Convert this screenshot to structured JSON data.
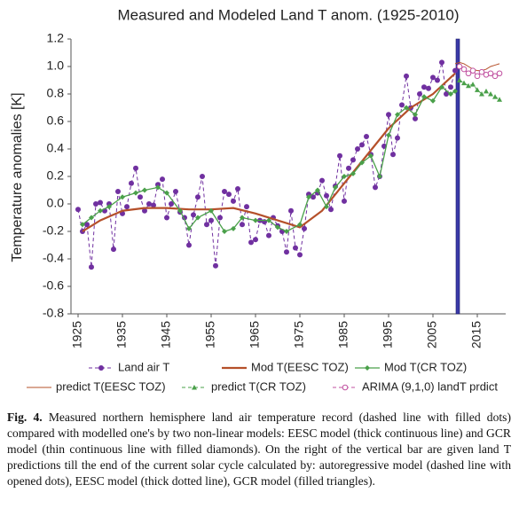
{
  "chart_data": {
    "type": "line",
    "title": "Measured and Modeled Land T anom. (1925-2010)",
    "ylabel": "Temperature anomalies [K]",
    "xlim": [
      1923.4,
      2021.4
    ],
    "xticks": [
      1925,
      1935,
      1945,
      1955,
      1965,
      1975,
      1985,
      1995,
      2005,
      2015
    ],
    "ylim": [
      -0.8,
      1.2
    ],
    "yticks": [
      -0.8,
      -0.6,
      -0.4,
      -0.2,
      {
        "value": 0,
        "label": "0.0"
      },
      0.2,
      0.4,
      0.6,
      0.8,
      {
        "value": 1,
        "label": "1.0"
      },
      1.2
    ],
    "grid": false,
    "divider_x": 2010.6,
    "divider_color": "#3a3aa8",
    "series": [
      {
        "name": "Land air T",
        "color": "#7030a0",
        "dash": true,
        "width": 1,
        "marker": "dot",
        "x": [
          1925,
          1926,
          1927,
          1928,
          1929,
          1930,
          1931,
          1932,
          1933,
          1934,
          1935,
          1936,
          1937,
          1938,
          1939,
          1940,
          1941,
          1942,
          1943,
          1944,
          1945,
          1946,
          1947,
          1948,
          1949,
          1950,
          1951,
          1952,
          1953,
          1954,
          1955,
          1956,
          1957,
          1958,
          1959,
          1960,
          1961,
          1962,
          1963,
          1964,
          1965,
          1966,
          1967,
          1968,
          1969,
          1970,
          1971,
          1972,
          1973,
          1974,
          1975,
          1976,
          1977,
          1978,
          1979,
          1980,
          1981,
          1982,
          1983,
          1984,
          1985,
          1986,
          1987,
          1988,
          1989,
          1990,
          1991,
          1992,
          1993,
          1994,
          1995,
          1996,
          1997,
          1998,
          1999,
          2000,
          2001,
          2002,
          2003,
          2004,
          2005,
          2006,
          2007,
          2008,
          2009,
          2010
        ],
        "values": [
          -0.04,
          -0.2,
          -0.15,
          -0.46,
          0.0,
          0.01,
          -0.05,
          0.0,
          -0.33,
          0.09,
          -0.07,
          -0.02,
          0.15,
          0.26,
          0.05,
          -0.05,
          0.0,
          -0.01,
          0.14,
          0.18,
          -0.1,
          0.0,
          0.09,
          -0.06,
          -0.1,
          -0.3,
          -0.08,
          0.05,
          0.2,
          -0.15,
          -0.12,
          -0.45,
          -0.1,
          0.09,
          0.07,
          0.02,
          0.11,
          -0.15,
          -0.02,
          -0.28,
          -0.26,
          -0.12,
          -0.13,
          -0.23,
          -0.1,
          -0.16,
          -0.2,
          -0.35,
          -0.05,
          -0.32,
          -0.37,
          -0.18,
          0.07,
          0.05,
          0.08,
          0.17,
          0.06,
          -0.04,
          0.13,
          0.35,
          0.02,
          0.26,
          0.32,
          0.4,
          0.43,
          0.49,
          0.36,
          0.12,
          0.2,
          0.42,
          0.65,
          0.36,
          0.48,
          0.72,
          0.93,
          0.7,
          0.62,
          0.8,
          0.85,
          0.84,
          0.92,
          0.9,
          1.03,
          0.8,
          0.85,
          0.97
        ]
      },
      {
        "name": "Mod T(EESC TOZ)",
        "color": "#b5502a",
        "dash": false,
        "width": 2.2,
        "marker": "none",
        "x": [
          1926,
          1930,
          1935,
          1940,
          1945,
          1950,
          1955,
          1960,
          1965,
          1970,
          1975,
          1980,
          1985,
          1990,
          1995,
          2000,
          2005,
          2010
        ],
        "values": [
          -0.2,
          -0.12,
          -0.05,
          -0.03,
          -0.03,
          -0.04,
          -0.04,
          -0.03,
          -0.07,
          -0.12,
          -0.17,
          -0.05,
          0.15,
          0.35,
          0.55,
          0.7,
          0.8,
          0.95
        ]
      },
      {
        "name": "Mod T(CR TOZ)",
        "color": "#4aa04a",
        "dash": false,
        "width": 1.3,
        "marker": "diamond",
        "x": [
          1926,
          1928,
          1930,
          1932,
          1935,
          1938,
          1940,
          1943,
          1945,
          1948,
          1950,
          1952,
          1955,
          1958,
          1960,
          1962,
          1965,
          1968,
          1970,
          1972,
          1975,
          1977,
          1979,
          1981,
          1983,
          1985,
          1987,
          1989,
          1991,
          1993,
          1995,
          1997,
          1999,
          2001,
          2003,
          2005,
          2007,
          2009,
          2010
        ],
        "values": [
          -0.15,
          -0.1,
          -0.05,
          -0.02,
          0.05,
          0.08,
          0.1,
          0.12,
          0.08,
          -0.05,
          -0.18,
          -0.1,
          -0.05,
          -0.2,
          -0.18,
          -0.1,
          -0.12,
          -0.12,
          -0.17,
          -0.2,
          -0.15,
          0.05,
          0.1,
          -0.02,
          0.12,
          0.2,
          0.22,
          0.3,
          0.35,
          0.2,
          0.5,
          0.65,
          0.7,
          0.65,
          0.78,
          0.75,
          0.85,
          0.8,
          0.82
        ]
      },
      {
        "name": "predict T(EESC TOZ)",
        "color": "#b5502a",
        "dash": false,
        "width": 1,
        "marker": "none",
        "x": [
          2010,
          2011,
          2012,
          2013,
          2014,
          2015,
          2016,
          2017,
          2018,
          2019,
          2020
        ],
        "values": [
          1.02,
          1.03,
          1.02,
          1.0,
          0.98,
          0.97,
          0.97,
          0.98,
          1.0,
          1.01,
          1.02
        ]
      },
      {
        "name": "predict T(CR TOZ)",
        "color": "#4aa04a",
        "dash": true,
        "width": 1,
        "marker": "triangle",
        "x": [
          2011,
          2012,
          2013,
          2014,
          2015,
          2016,
          2017,
          2018,
          2019,
          2020
        ],
        "values": [
          0.9,
          0.88,
          0.86,
          0.87,
          0.83,
          0.8,
          0.82,
          0.8,
          0.78,
          0.76
        ]
      },
      {
        "name": "ARIMA (9,1,0) landT prdict",
        "color": "#c050a0",
        "dash": true,
        "width": 1,
        "marker": "open",
        "x": [
          2011,
          2012,
          2013,
          2014,
          2015,
          2016,
          2017,
          2018,
          2019,
          2020
        ],
        "values": [
          1.0,
          0.98,
          0.95,
          0.97,
          0.93,
          0.96,
          0.94,
          0.95,
          0.93,
          0.95
        ]
      }
    ]
  },
  "caption": {
    "label": "Fig. 4.",
    "text": "Measured northern hemisphere land air temperature record (dashed line with filled dots) compared with modelled one's by two non-linear models: EESC model (thick continuous line) and GCR model (thin continuous line with filled diamonds). On the right of the vertical bar are given land T predictions till the end of the current solar cycle calculated by: autoregressive model (dashed line with opened dots), EESC model (thick dotted line), GCR model (filled triangles)."
  }
}
